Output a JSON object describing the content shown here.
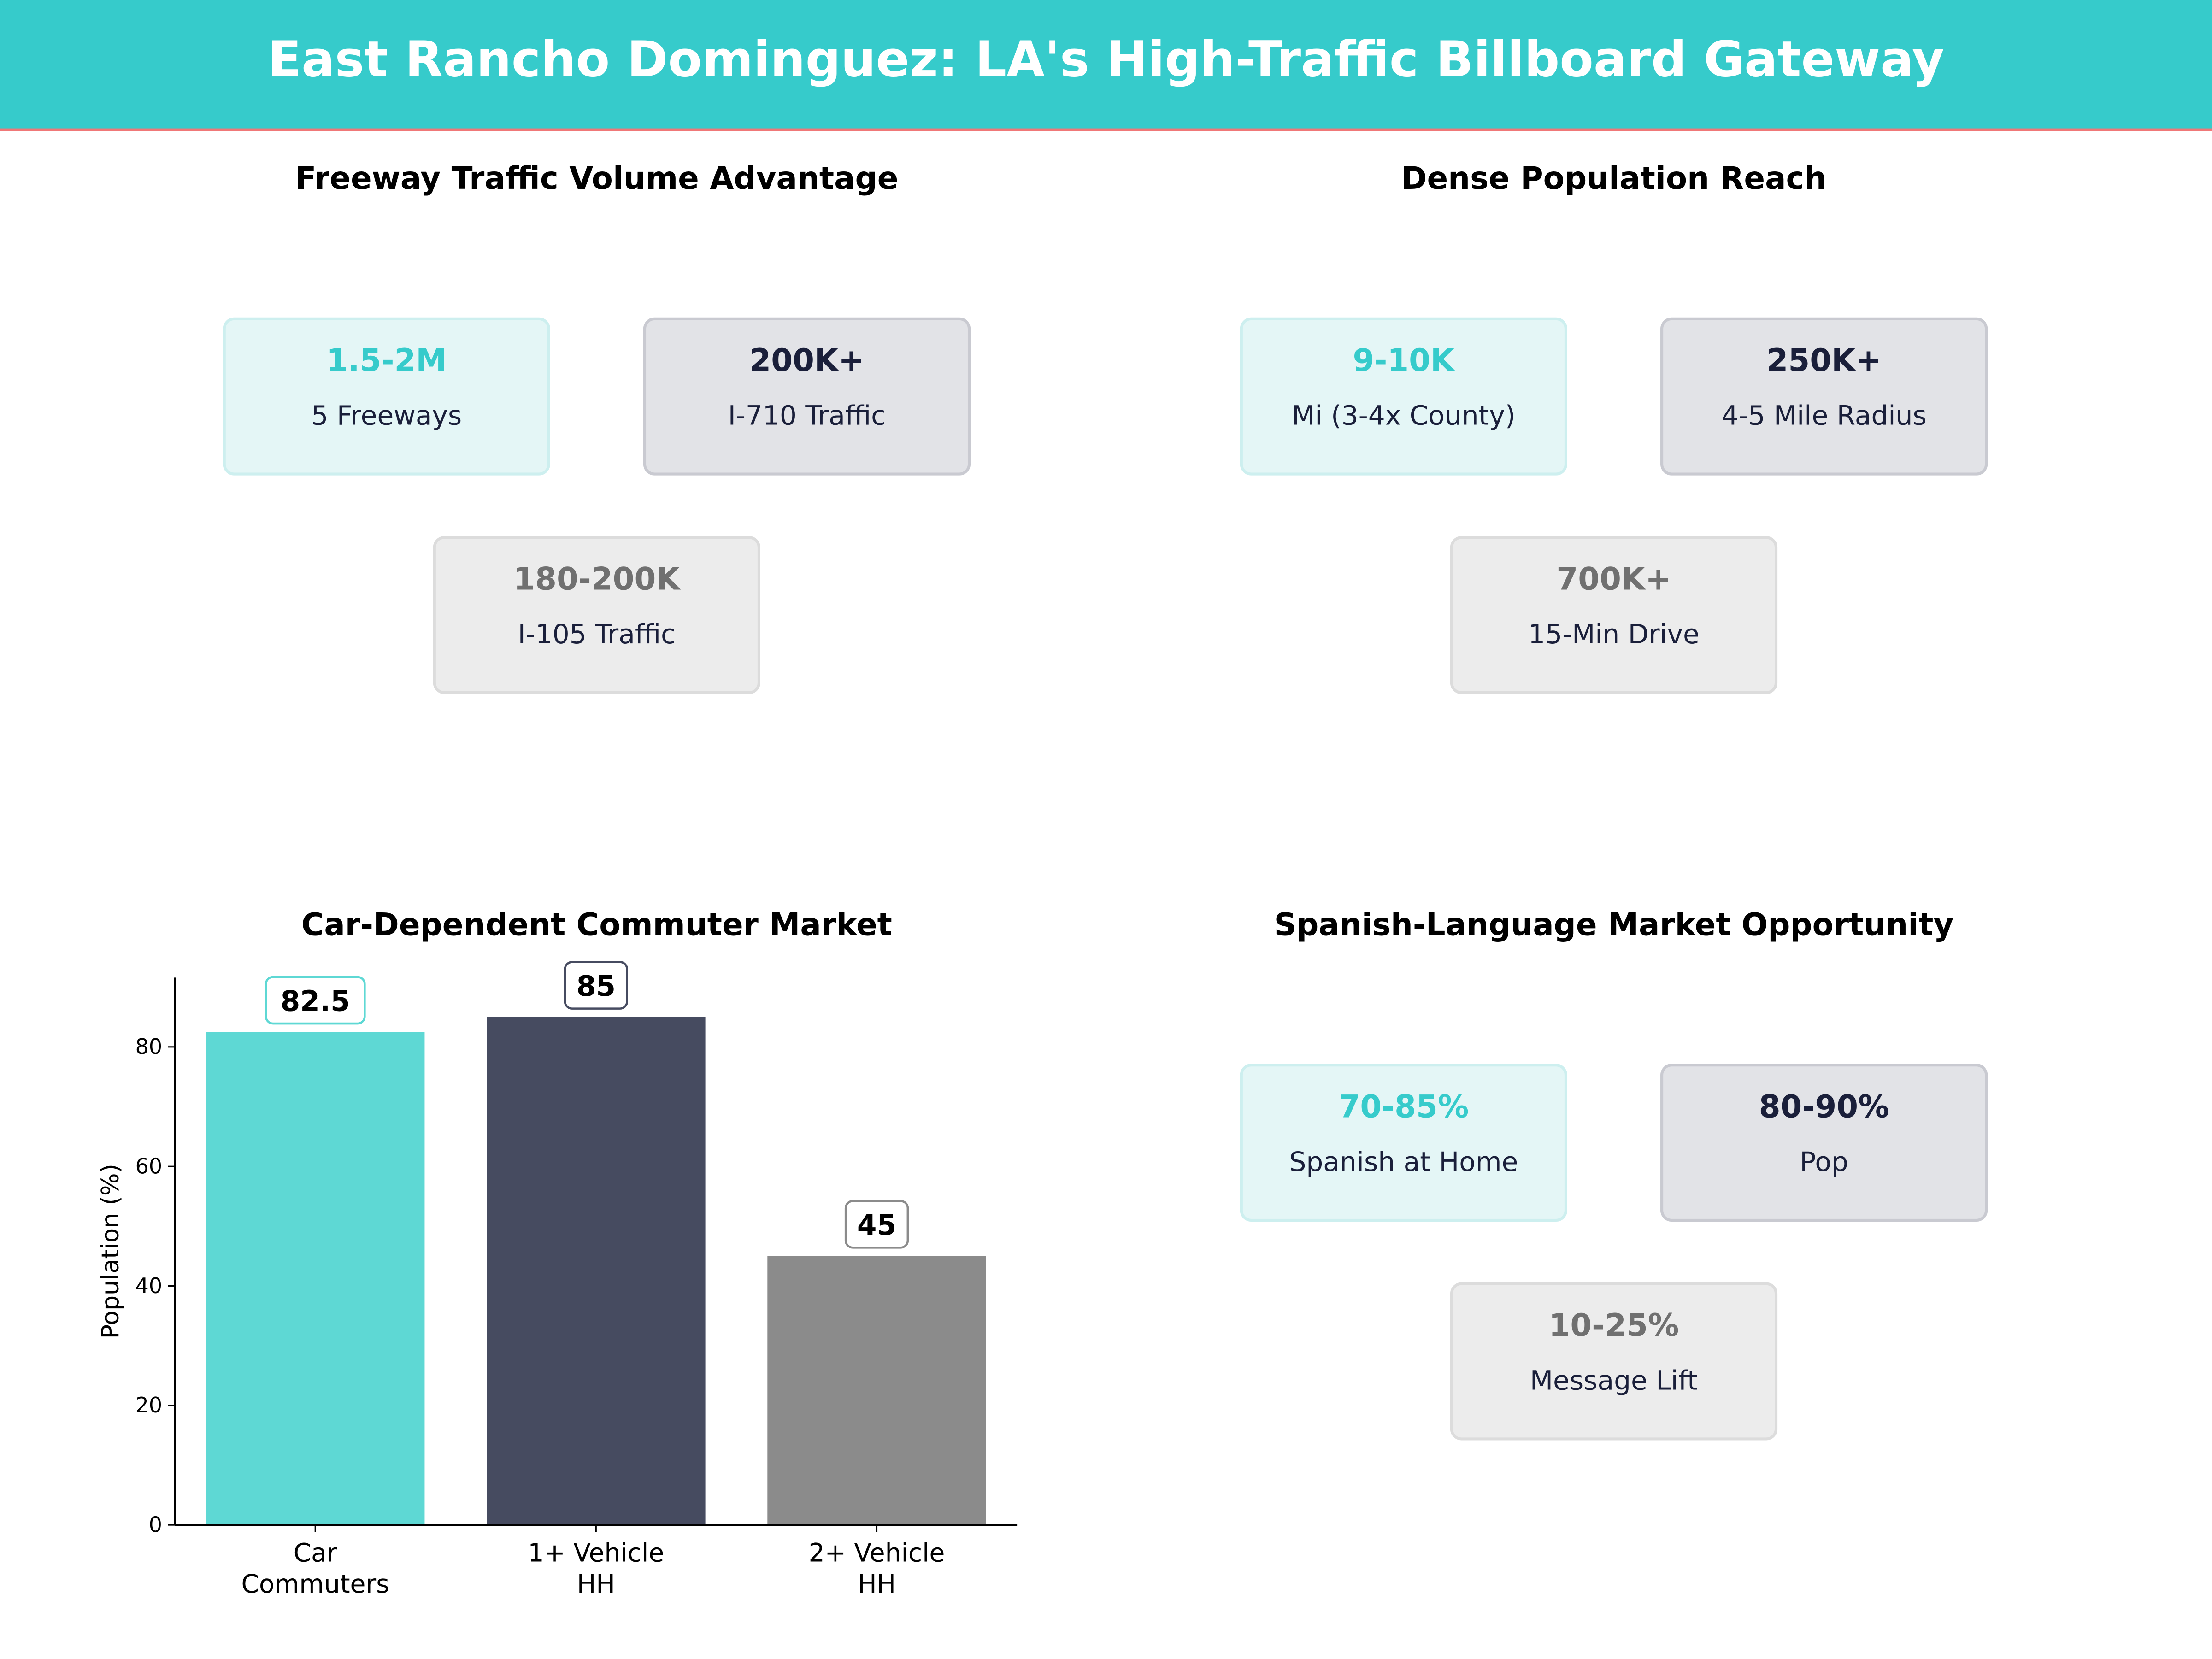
{
  "header": {
    "title": "East Rancho Dominguez: LA's High-Traffic Billboard Gateway"
  },
  "colors": {
    "teal": "#36CBCB",
    "navy": "#1A1F3A",
    "gray": "#707070",
    "accent_line": "#F07878"
  },
  "panels": [
    {
      "title": "Freeway Traffic Volume Advantage",
      "cards": [
        {
          "value": "1.5-2M",
          "label": "5 Freeways"
        },
        {
          "value": "200K+",
          "label": "I-710  Traffic"
        },
        {
          "value": "180-200K",
          "label": "I-105  Traffic"
        }
      ]
    },
    {
      "title": "Dense Population Reach",
      "cards": [
        {
          "value": "9-10K",
          "label": "Mi (3-4x County)"
        },
        {
          "value": "250K+",
          "label": "4-5 Mile Radius"
        },
        {
          "value": "700K+",
          "label": "15-Min Drive"
        }
      ]
    },
    {
      "title": "Spanish-Language Market Opportunity",
      "cards": [
        {
          "value": "70-85%",
          "label": "Spanish at Home"
        },
        {
          "value": "80-90%",
          "label": "Pop"
        },
        {
          "value": "10-25%",
          "label": "Message Lift"
        }
      ]
    }
  ],
  "chart_data": {
    "type": "bar",
    "title": "Car-Dependent Commuter Market",
    "categories": [
      [
        "Car",
        "Commuters"
      ],
      [
        "1+ Vehicle",
        "HH"
      ],
      [
        "2+ Vehicle",
        "HH"
      ]
    ],
    "values": [
      82.5,
      85,
      45
    ],
    "data_labels": [
      "82.5",
      "85",
      "45"
    ],
    "colors": [
      "#5ED8D4",
      "#464B60",
      "#8B8B8B"
    ],
    "xlabel": "",
    "ylabel": "Population (%)",
    "ylim": [
      0,
      91.6
    ],
    "yticks": [
      0,
      20,
      40,
      60,
      80
    ],
    "grid": false
  }
}
